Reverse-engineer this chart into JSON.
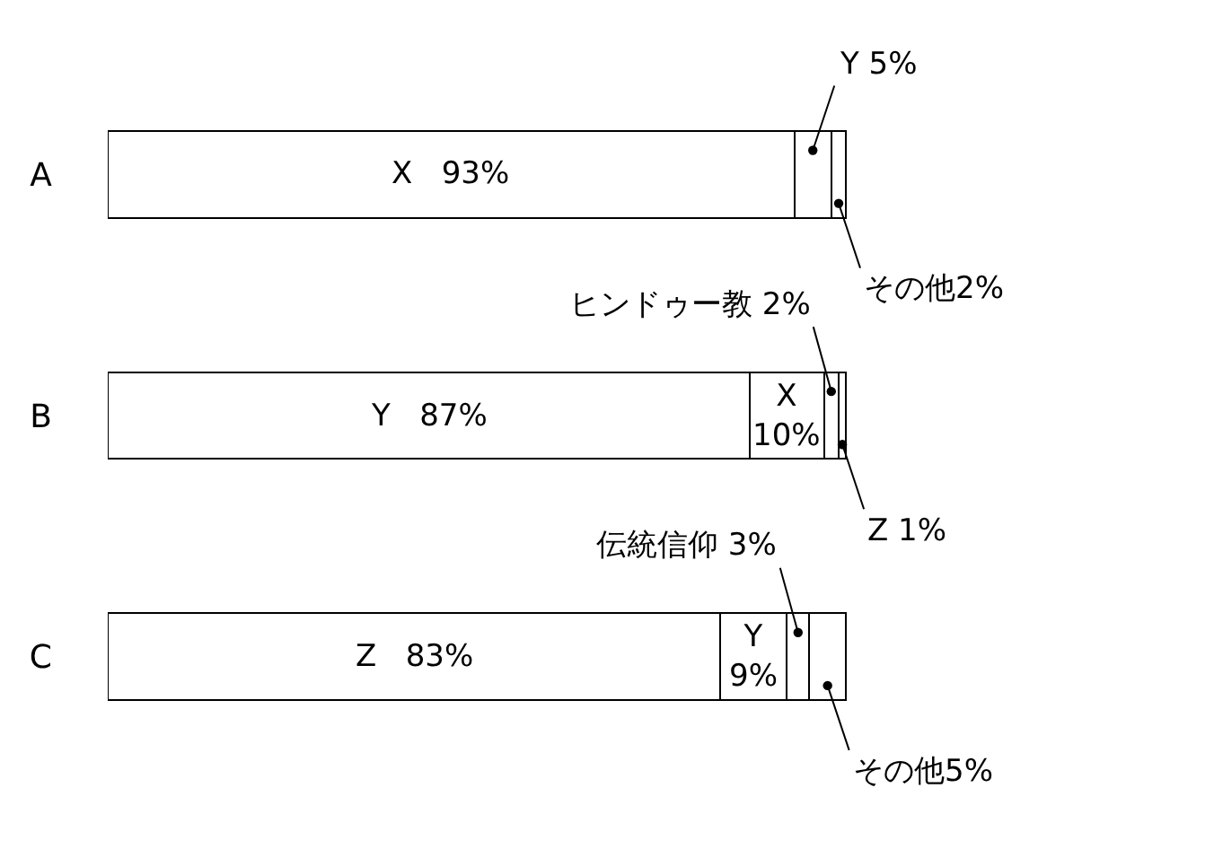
{
  "chart_data": {
    "type": "bar",
    "orientation": "horizontal",
    "stacked": true,
    "categories": [
      "A",
      "B",
      "C"
    ],
    "tick_labels": "y",
    "series": [
      {
        "color": "#ffffff",
        "values": [
          93,
          87,
          83
        ],
        "value_labels": [
          "X 93%",
          "Y 87%",
          "Z 83%"
        ]
      },
      {
        "color": "#ffffff",
        "values": [
          5,
          10,
          9
        ],
        "value_labels": [
          "Y 5%",
          "X 10%",
          "Y 9%"
        ]
      },
      {
        "color": "#ffffff",
        "values": [
          2,
          2,
          3
        ],
        "value_labels": [
          "その他2%",
          "ヒンドゥー教 2%",
          "伝統信仰 3%"
        ]
      },
      {
        "color": "#ffffff",
        "values": [
          null,
          1,
          5
        ],
        "value_labels": [
          null,
          "Z 1%",
          "その他5%"
        ]
      }
    ]
  }
}
